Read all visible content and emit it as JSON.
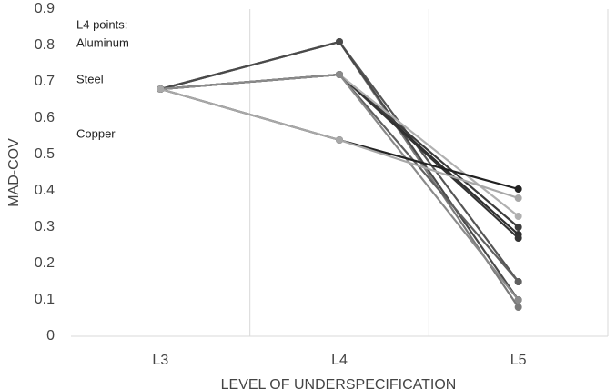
{
  "chart_data": {
    "type": "line",
    "y_label": "MAD-COV",
    "x_label": "LEVEL OF UNDERSPECIFICATION",
    "annotations": [
      "L4 points:",
      "Aluminum",
      "Steel",
      "Copper"
    ],
    "categories": [
      "L3",
      "L4",
      "L5"
    ],
    "ylim": [
      0,
      0.9
    ],
    "yticks": [
      0,
      0.1,
      0.2,
      0.3,
      0.4,
      0.5,
      0.6,
      0.7,
      0.8,
      0.9
    ],
    "series": [
      {
        "color": "#555555",
        "values": [
          0.68,
          0.81,
          0.15
        ]
      },
      {
        "color": "#7a7a7a",
        "values": [
          0.68,
          0.81,
          0.08
        ]
      },
      {
        "color": "#4a4a4a",
        "values": [
          0.68,
          0.81,
          0.1
        ]
      },
      {
        "color": "#2e2e2e",
        "values": [
          0.68,
          0.72,
          0.28
        ]
      },
      {
        "color": "#3c3c3c",
        "values": [
          0.68,
          0.72,
          0.3
        ]
      },
      {
        "color": "#333333",
        "values": [
          0.68,
          0.72,
          0.27
        ]
      },
      {
        "color": "#b0b0b0",
        "values": [
          0.68,
          0.72,
          0.33
        ]
      },
      {
        "color": "#606060",
        "values": [
          0.68,
          0.72,
          0.15
        ]
      },
      {
        "color": "#8a8a8a",
        "values": [
          0.68,
          0.72,
          0.1
        ]
      },
      {
        "color": "#222222",
        "values": [
          0.68,
          0.54,
          0.405
        ]
      },
      {
        "color": "#a8a8a8",
        "values": [
          0.68,
          0.54,
          0.38
        ]
      }
    ]
  }
}
